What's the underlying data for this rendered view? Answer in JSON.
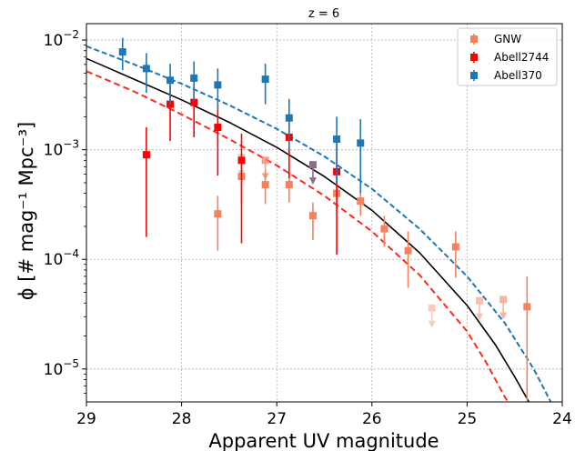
{
  "chart_data": {
    "type": "scatter",
    "title": "z = 6",
    "xlabel": "Apparent UV magnitude",
    "ylabel": "ϕ [# mag⁻¹ Mpc⁻³]",
    "xlim": [
      29,
      24
    ],
    "ylim_log10": [
      -5.3,
      -1.85
    ],
    "yscale": "log",
    "x_ticks": [
      29,
      28,
      27,
      26,
      25,
      24
    ],
    "y_ticks": [
      {
        "exp": -5,
        "base": "10",
        "sup": "−5"
      },
      {
        "exp": -4,
        "base": "10",
        "sup": "−4"
      },
      {
        "exp": -3,
        "base": "10",
        "sup": "−3"
      },
      {
        "exp": -2,
        "base": "10",
        "sup": "−2"
      }
    ],
    "grid": true,
    "legend_position": "top-right",
    "series": [
      {
        "name": "GNW",
        "color": "#f4825f",
        "marker": "square",
        "points": [
          {
            "x": 27.62,
            "y": 0.00026,
            "ylo": 0.00012,
            "yhi": 0.00038
          },
          {
            "x": 27.37,
            "y": 0.00057,
            "ylo": 0.00033,
            "yhi": 0.0009
          },
          {
            "x": 27.12,
            "y": 0.00048,
            "ylo": 0.00032,
            "yhi": 0.00065
          },
          {
            "x": 26.87,
            "y": 0.00048,
            "ylo": 0.00033,
            "yhi": 0.00062
          },
          {
            "x": 26.62,
            "y": 0.00025,
            "ylo": 0.00015,
            "yhi": 0.00033
          },
          {
            "x": 26.37,
            "y": 0.0004,
            "ylo": 0.00028,
            "yhi": 0.00053
          },
          {
            "x": 26.12,
            "y": 0.00034,
            "ylo": 0.00025,
            "yhi": 0.00043
          },
          {
            "x": 25.87,
            "y": 0.00019,
            "ylo": 0.00013,
            "yhi": 0.00025
          },
          {
            "x": 25.62,
            "y": 0.00012,
            "ylo": 5.5e-05,
            "yhi": 0.00018
          },
          {
            "x": 25.12,
            "y": 0.00013,
            "ylo": 6.8e-05,
            "yhi": 0.00018
          },
          {
            "x": 24.37,
            "y": 3.7e-05,
            "ylo": 5e-06,
            "yhi": 7e-05
          }
        ],
        "upper_limits": [
          {
            "x": 27.12,
            "y": 0.0008,
            "alpha": 0.75
          },
          {
            "x": 25.37,
            "y": 3.6e-05,
            "alpha": 0.4
          },
          {
            "x": 24.87,
            "y": 4.2e-05,
            "alpha": 0.5
          },
          {
            "x": 24.62,
            "y": 4.3e-05,
            "alpha": 0.6
          }
        ]
      },
      {
        "name": "Abell2744",
        "color": "#ff0000",
        "marker": "square",
        "points": [
          {
            "x": 28.37,
            "y": 0.0009,
            "ylo": 0.00016,
            "yhi": 0.0016
          },
          {
            "x": 28.12,
            "y": 0.0026,
            "ylo": 0.0012,
            "yhi": 0.0039
          },
          {
            "x": 27.87,
            "y": 0.0027,
            "ylo": 0.0013,
            "yhi": 0.004
          },
          {
            "x": 27.62,
            "y": 0.0016,
            "ylo": 0.00058,
            "yhi": 0.0026
          },
          {
            "x": 27.37,
            "y": 0.0008,
            "ylo": 0.00014,
            "yhi": 0.0014
          },
          {
            "x": 26.87,
            "y": 0.0013,
            "ylo": 0.00055,
            "yhi": 0.0021
          },
          {
            "x": 26.37,
            "y": 0.00063,
            "ylo": 0.00011,
            "yhi": 0.0012
          }
        ],
        "upper_limits": []
      },
      {
        "name": "Abell370",
        "color": "#1f77b4",
        "marker": "square",
        "points": [
          {
            "x": 28.62,
            "y": 0.0078,
            "ylo": 0.0053,
            "yhi": 0.0105
          },
          {
            "x": 28.37,
            "y": 0.0055,
            "ylo": 0.0033,
            "yhi": 0.0076
          },
          {
            "x": 28.12,
            "y": 0.0043,
            "ylo": 0.0026,
            "yhi": 0.0061
          },
          {
            "x": 27.87,
            "y": 0.0045,
            "ylo": 0.0028,
            "yhi": 0.0064
          },
          {
            "x": 27.62,
            "y": 0.0039,
            "ylo": 0.0023,
            "yhi": 0.0055
          },
          {
            "x": 27.12,
            "y": 0.0044,
            "ylo": 0.0026,
            "yhi": 0.0061
          },
          {
            "x": 26.87,
            "y": 0.00195,
            "ylo": 0.001,
            "yhi": 0.0029
          },
          {
            "x": 26.37,
            "y": 0.00125,
            "ylo": 0.0005,
            "yhi": 0.002
          },
          {
            "x": 26.12,
            "y": 0.00115,
            "ylo": 0.0004,
            "yhi": 0.0019
          }
        ],
        "upper_limits": [
          {
            "x": 27.37,
            "y": 0.00085,
            "alpha": 0.3
          }
        ]
      }
    ],
    "extra_upper_limits": [
      {
        "x": 26.62,
        "y": 0.00073,
        "color": "#8c6d8c"
      }
    ],
    "curves": [
      {
        "color": "#000000",
        "style": "solid",
        "points": [
          [
            29.0,
            0.0068
          ],
          [
            28.5,
            0.0044
          ],
          [
            28.0,
            0.00285
          ],
          [
            27.5,
            0.00178
          ],
          [
            27.0,
            0.00105
          ],
          [
            26.5,
            0.00057
          ],
          [
            26.0,
            0.00028
          ],
          [
            25.5,
            0.000115
          ],
          [
            25.0,
            3.8e-05
          ],
          [
            24.7,
            1.65e-05
          ],
          [
            24.5,
            8.5e-06
          ],
          [
            24.35,
            5e-06
          ]
        ]
      },
      {
        "color": "#1f77b4",
        "style": "dashed",
        "points": [
          [
            29.0,
            0.0088
          ],
          [
            28.5,
            0.006
          ],
          [
            28.0,
            0.004
          ],
          [
            27.5,
            0.00255
          ],
          [
            27.0,
            0.00155
          ],
          [
            26.5,
            0.00087
          ],
          [
            26.0,
            0.00044
          ],
          [
            25.5,
            0.00019
          ],
          [
            25.0,
            7e-05
          ],
          [
            24.6,
            2.6e-05
          ],
          [
            24.3,
            1e-05
          ],
          [
            24.12,
            5e-06
          ]
        ]
      },
      {
        "color": "#ff2a1a",
        "style": "dashed",
        "points": [
          [
            29.0,
            0.0052
          ],
          [
            28.5,
            0.0034
          ],
          [
            28.0,
            0.0021
          ],
          [
            27.5,
            0.00125
          ],
          [
            27.0,
            0.00072
          ],
          [
            26.5,
            0.00038
          ],
          [
            26.0,
            0.00018
          ],
          [
            25.5,
            7.2e-05
          ],
          [
            25.0,
            2.2e-05
          ],
          [
            24.8,
            1.15e-05
          ],
          [
            24.6,
            5.5e-06
          ],
          [
            24.57,
            5e-06
          ]
        ]
      }
    ]
  }
}
